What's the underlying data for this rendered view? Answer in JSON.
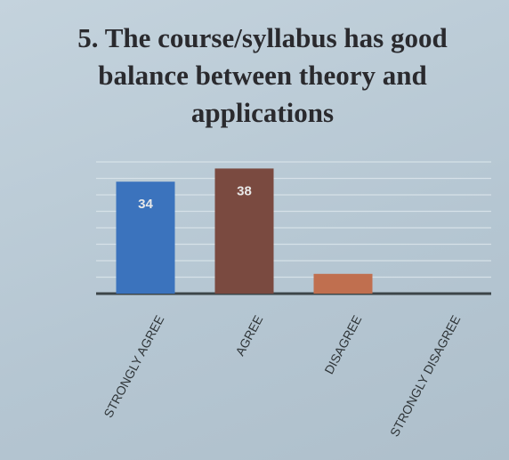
{
  "chart_data": {
    "type": "bar",
    "title": "5. The course/syllabus has good balance between theory and applications",
    "categories": [
      "STRONGLY AGREE",
      "AGREE",
      "DISAGREE",
      "STRONGLY DISAGREE"
    ],
    "values": [
      34,
      38,
      6,
      0
    ],
    "value_labels": [
      "34",
      "38",
      null,
      null
    ],
    "colors": [
      "#3b73bd",
      "#7a4a40",
      "#c06f4f",
      "#888888"
    ],
    "ylim": [
      0,
      40
    ],
    "yticks": [
      0,
      5,
      10,
      15,
      20,
      25,
      30,
      35,
      40
    ],
    "grid": true
  }
}
